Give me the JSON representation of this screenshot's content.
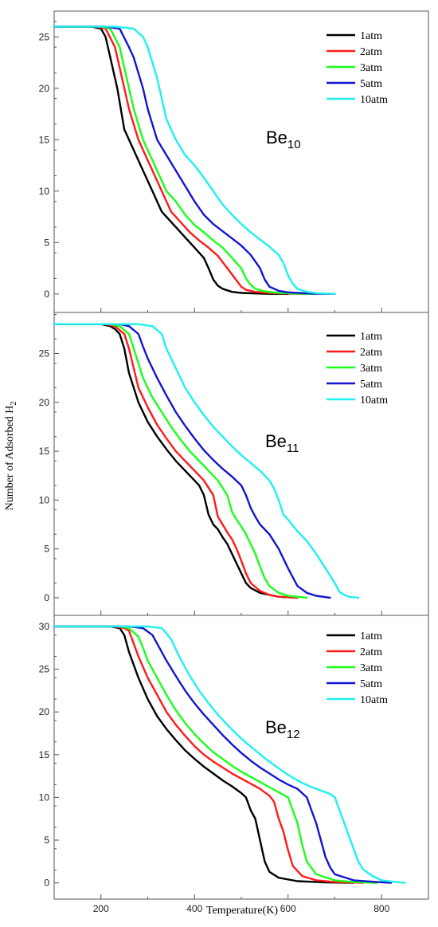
{
  "xlabel": "Temperature(K)",
  "ylabel_main": "Number of Adsorbed H",
  "ylabel_sub": "2",
  "xticks": [
    200,
    400,
    600,
    800
  ],
  "xlim": [
    100,
    900
  ],
  "legend": [
    "1atm",
    "2atm",
    "3atm",
    "5atm",
    "10atm"
  ],
  "colors": [
    "#000000",
    "#ff1a1a",
    "#1aff1a",
    "#1414d2",
    "#1ff0f0"
  ],
  "chart_data": [
    {
      "type": "line",
      "title_main": "Be",
      "title_sub": "10",
      "ylim": [
        -1.8,
        27.5
      ],
      "yticks": [
        0,
        5,
        10,
        15,
        20,
        25
      ],
      "series": [
        {
          "name": "1atm",
          "x": [
            100,
            180,
            200,
            210,
            220,
            235,
            250,
            260,
            270,
            290,
            310,
            330,
            340,
            360,
            380,
            400,
            420,
            430,
            440,
            450,
            460,
            480,
            500,
            550,
            600
          ],
          "y": [
            26,
            26,
            25.8,
            25,
            23,
            20,
            16,
            15,
            14,
            12,
            10,
            8,
            7.5,
            6.5,
            5.5,
            4.5,
            3.5,
            2.5,
            1.4,
            0.8,
            0.5,
            0.2,
            0.1,
            0.02,
            0
          ]
        },
        {
          "name": "2atm",
          "x": [
            100,
            190,
            210,
            230,
            240,
            260,
            280,
            300,
            320,
            340,
            350,
            370,
            390,
            410,
            430,
            450,
            470,
            490,
            500,
            510,
            530,
            560,
            600,
            640
          ],
          "y": [
            26,
            26,
            25.8,
            24,
            22,
            18,
            15,
            13,
            11,
            9,
            8,
            7,
            6,
            5.2,
            4.5,
            3.7,
            2.5,
            1.3,
            0.7,
            0.4,
            0.2,
            0.1,
            0.03,
            0
          ]
        },
        {
          "name": "3atm",
          "x": [
            100,
            200,
            220,
            240,
            250,
            270,
            290,
            300,
            320,
            340,
            360,
            380,
            400,
            420,
            440,
            460,
            480,
            500,
            510,
            520,
            530,
            550,
            580,
            620,
            660
          ],
          "y": [
            26,
            26,
            25.8,
            24,
            22,
            18,
            15,
            14,
            12,
            10,
            9,
            7.7,
            6.7,
            6,
            5.2,
            4.5,
            3.5,
            2.5,
            1.5,
            0.9,
            0.5,
            0.25,
            0.1,
            0.03,
            0
          ]
        },
        {
          "name": "5atm",
          "x": [
            100,
            210,
            240,
            260,
            270,
            290,
            300,
            320,
            340,
            360,
            380,
            400,
            420,
            440,
            460,
            480,
            500,
            520,
            540,
            550,
            560,
            580,
            600,
            650,
            700
          ],
          "y": [
            26,
            26,
            25.8,
            24,
            23,
            20,
            18,
            15,
            13.5,
            12,
            10.5,
            9,
            7.7,
            6.8,
            6.1,
            5.4,
            4.7,
            3.8,
            2.5,
            1.4,
            0.7,
            0.3,
            0.15,
            0.04,
            0
          ]
        },
        {
          "name": "10atm",
          "x": [
            100,
            230,
            270,
            290,
            300,
            320,
            340,
            360,
            380,
            400,
            420,
            440,
            460,
            480,
            500,
            520,
            540,
            560,
            580,
            590,
            600,
            610,
            620,
            640,
            660,
            700
          ],
          "y": [
            26,
            26,
            25.8,
            25,
            24,
            21,
            17,
            15,
            13.5,
            12.5,
            11.3,
            10,
            8.7,
            7.7,
            6.8,
            6,
            5.3,
            4.6,
            3.8,
            3,
            1.8,
            1,
            0.5,
            0.2,
            0.08,
            0
          ]
        }
      ]
    },
    {
      "type": "line",
      "title_main": "Be",
      "title_sub": "11",
      "ylim": [
        -1.8,
        29.2
      ],
      "yticks": [
        0,
        5,
        10,
        15,
        20,
        25
      ],
      "series": [
        {
          "name": "1atm",
          "x": [
            100,
            200,
            220,
            230,
            240,
            250,
            260,
            280,
            300,
            320,
            340,
            360,
            380,
            400,
            410,
            420,
            430,
            440,
            450,
            460,
            470,
            480,
            490,
            500,
            510,
            520,
            540,
            580,
            620
          ],
          "y": [
            28,
            28,
            27.8,
            27.5,
            27,
            25.5,
            23,
            20,
            18,
            16.5,
            15.2,
            14,
            13,
            12,
            11.5,
            10.5,
            8.5,
            7.5,
            7,
            6.2,
            5.5,
            4.5,
            3.5,
            2.5,
            1.5,
            1,
            0.5,
            0.1,
            0
          ]
        },
        {
          "name": "2atm",
          "x": [
            100,
            210,
            230,
            250,
            260,
            270,
            280,
            300,
            320,
            340,
            360,
            380,
            400,
            420,
            440,
            450,
            460,
            470,
            480,
            490,
            500,
            510,
            520,
            540,
            560,
            580,
            620
          ],
          "y": [
            28,
            28,
            27.8,
            27,
            25.5,
            23.5,
            21.5,
            19.5,
            17.7,
            16.3,
            15,
            14,
            13,
            12,
            10.5,
            8.3,
            7.5,
            6.7,
            6,
            5,
            3.8,
            2.5,
            1.5,
            0.7,
            0.3,
            0.1,
            0
          ]
        },
        {
          "name": "3atm",
          "x": [
            100,
            220,
            240,
            260,
            270,
            280,
            290,
            310,
            330,
            350,
            370,
            390,
            410,
            430,
            450,
            470,
            480,
            490,
            500,
            510,
            520,
            530,
            540,
            550,
            560,
            580,
            600,
            640
          ],
          "y": [
            28,
            28,
            27.8,
            27,
            25.5,
            24,
            22.5,
            20.5,
            19,
            17.5,
            16.2,
            15,
            14,
            13,
            12,
            10.5,
            8.8,
            8,
            7.3,
            6.5,
            5.5,
            4.5,
            3.2,
            2,
            1.2,
            0.5,
            0.2,
            0
          ]
        },
        {
          "name": "5atm",
          "x": [
            100,
            240,
            260,
            280,
            290,
            300,
            320,
            340,
            360,
            380,
            400,
            420,
            440,
            460,
            480,
            500,
            510,
            520,
            530,
            540,
            560,
            580,
            600,
            620,
            640,
            660,
            690
          ],
          "y": [
            28,
            28,
            27.8,
            27,
            25.7,
            24.5,
            22.5,
            20.7,
            19,
            17.6,
            16.3,
            15.1,
            14.1,
            13.2,
            12.4,
            11.5,
            10.5,
            9.2,
            8.3,
            7.5,
            6.5,
            5,
            3,
            1.2,
            0.5,
            0.2,
            0
          ]
        },
        {
          "name": "10atm",
          "x": [
            100,
            280,
            310,
            330,
            340,
            360,
            380,
            400,
            420,
            440,
            460,
            480,
            500,
            520,
            540,
            560,
            570,
            580,
            590,
            600,
            620,
            640,
            660,
            680,
            700,
            710,
            720,
            730,
            750
          ],
          "y": [
            28,
            28,
            27.8,
            27,
            25.5,
            23.5,
            21.5,
            20,
            18.7,
            17.5,
            16.5,
            15.5,
            14.6,
            13.8,
            13,
            12,
            11.2,
            10,
            8.5,
            8,
            6.8,
            5.8,
            4.5,
            3,
            1.5,
            0.6,
            0.3,
            0.1,
            0
          ]
        }
      ]
    },
    {
      "type": "line",
      "title_main": "Be",
      "title_sub": "12",
      "ylim": [
        -1.9,
        31.3
      ],
      "yticks": [
        0,
        5,
        10,
        15,
        20,
        25,
        30
      ],
      "series": [
        {
          "name": "1atm",
          "x": [
            100,
            220,
            240,
            250,
            260,
            280,
            300,
            320,
            340,
            360,
            380,
            400,
            420,
            440,
            460,
            480,
            500,
            510,
            520,
            530,
            540,
            550,
            560,
            580,
            620,
            680,
            740
          ],
          "y": [
            30,
            30,
            29.8,
            29,
            27,
            24,
            21.5,
            19.5,
            18,
            16.7,
            15.5,
            14.5,
            13.6,
            12.8,
            12,
            11.3,
            10.5,
            10,
            8.5,
            7.5,
            5,
            2.5,
            1.3,
            0.6,
            0.2,
            0.05,
            0
          ]
        },
        {
          "name": "2atm",
          "x": [
            100,
            230,
            250,
            260,
            270,
            280,
            300,
            320,
            340,
            360,
            380,
            400,
            420,
            440,
            460,
            480,
            500,
            520,
            540,
            560,
            570,
            580,
            590,
            600,
            610,
            630,
            660,
            700,
            760
          ],
          "y": [
            30,
            30,
            29.8,
            29.5,
            28,
            26.5,
            24,
            22,
            20,
            18.5,
            17.2,
            16,
            15,
            14.2,
            13.5,
            12.8,
            12.2,
            11.6,
            11,
            10.2,
            9.5,
            7.5,
            6,
            3.8,
            2,
            0.8,
            0.3,
            0.1,
            0
          ]
        },
        {
          "name": "3atm",
          "x": [
            100,
            240,
            260,
            280,
            290,
            300,
            320,
            340,
            360,
            380,
            400,
            420,
            440,
            460,
            480,
            500,
            520,
            540,
            560,
            580,
            600,
            610,
            620,
            630,
            640,
            660,
            700,
            740,
            790
          ],
          "y": [
            30,
            30,
            29.8,
            28.8,
            27.5,
            26,
            24,
            22,
            20.2,
            18.7,
            17.4,
            16.3,
            15.3,
            14.5,
            13.7,
            13,
            12.4,
            11.8,
            11.2,
            10.6,
            10,
            8.5,
            7,
            4.5,
            2.5,
            1,
            0.3,
            0.1,
            0
          ]
        },
        {
          "name": "5atm",
          "x": [
            100,
            260,
            290,
            310,
            320,
            340,
            360,
            380,
            400,
            420,
            440,
            460,
            480,
            500,
            520,
            540,
            560,
            580,
            600,
            620,
            640,
            650,
            660,
            670,
            680,
            690,
            700,
            740,
            790,
            820
          ],
          "y": [
            30,
            30,
            29.8,
            29,
            28,
            26,
            24.2,
            22.5,
            21,
            19.7,
            18.5,
            17.3,
            16.2,
            15.2,
            14.3,
            13.5,
            12.8,
            12.1,
            11.5,
            11,
            10,
            8.5,
            7,
            5,
            3,
            1.8,
            1,
            0.3,
            0.1,
            0
          ]
        },
        {
          "name": "10atm",
          "x": [
            100,
            300,
            330,
            340,
            350,
            370,
            390,
            410,
            430,
            450,
            470,
            490,
            510,
            530,
            550,
            570,
            590,
            610,
            630,
            650,
            670,
            690,
            700,
            710,
            720,
            730,
            740,
            750,
            760,
            780,
            800,
            830,
            850
          ],
          "y": [
            30,
            30,
            29.8,
            29.2,
            28.5,
            26.2,
            24.2,
            22.5,
            21,
            19.7,
            18.5,
            17.4,
            16.4,
            15.5,
            14.6,
            13.8,
            13,
            12.3,
            11.7,
            11.2,
            10.8,
            10.4,
            10,
            8.5,
            7,
            5.5,
            4,
            2.5,
            1.6,
            0.8,
            0.3,
            0.1,
            0
          ]
        }
      ]
    }
  ]
}
